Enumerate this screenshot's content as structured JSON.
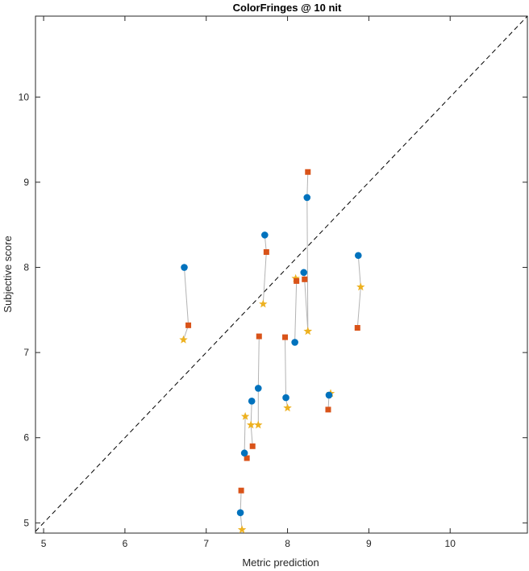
{
  "chart_data": {
    "type": "scatter",
    "title": "ColorFringes @ 10 nit",
    "xlabel": "Metric prediction",
    "ylabel": "Subjective score",
    "xlim": [
      4.9,
      10.95
    ],
    "ylim": [
      4.88,
      10.95
    ],
    "xticks": [
      "5",
      "6",
      "7",
      "8",
      "9",
      "10"
    ],
    "yticks": [
      "5",
      "6",
      "7",
      "8",
      "9",
      "10"
    ],
    "grid": false,
    "diagonal_reference": true,
    "colors": {
      "circle": "#0072BD",
      "square": "#D95319",
      "star": "#EDB120",
      "connector": "#B3B3B3",
      "diagonal": "#000000"
    },
    "groups": [
      {
        "circle": [
          6.73,
          8.0
        ],
        "square": [
          6.78,
          7.32
        ],
        "star": [
          6.72,
          7.15
        ]
      },
      {
        "circle": [
          7.72,
          8.38
        ],
        "square": [
          7.74,
          8.18
        ],
        "star": [
          7.7,
          7.57
        ]
      },
      {
        "circle": [
          7.64,
          6.58
        ],
        "square": [
          7.65,
          7.19
        ],
        "star": [
          7.64,
          6.15
        ]
      },
      {
        "circle": [
          7.56,
          6.43
        ],
        "square": [
          7.57,
          5.9
        ],
        "star": [
          7.55,
          6.15
        ]
      },
      {
        "circle": [
          7.47,
          5.82
        ],
        "square": [
          7.5,
          5.76
        ],
        "star": [
          7.48,
          6.25
        ]
      },
      {
        "circle": [
          7.42,
          5.12
        ],
        "square": [
          7.43,
          5.38
        ],
        "star": [
          7.44,
          4.92
        ]
      },
      {
        "circle": [
          7.98,
          6.47
        ],
        "square": [
          7.97,
          7.18
        ],
        "star": [
          8.0,
          6.35
        ]
      },
      {
        "circle": [
          8.09,
          7.12
        ],
        "square": [
          8.11,
          7.84
        ],
        "star": [
          8.1,
          7.87
        ]
      },
      {
        "circle": [
          8.2,
          7.94
        ],
        "square": [
          8.21,
          7.86
        ],
        "star": [
          8.25,
          7.25
        ]
      },
      {
        "circle": [
          8.24,
          8.82
        ],
        "square": [
          8.25,
          9.12
        ],
        "star": [
          8.25,
          7.25
        ]
      },
      {
        "circle": [
          8.51,
          6.5
        ],
        "square": [
          8.5,
          6.33
        ],
        "star": [
          8.53,
          6.52
        ]
      },
      {
        "circle": [
          8.87,
          8.14
        ],
        "square": [
          8.86,
          7.29
        ],
        "star": [
          8.9,
          7.77
        ]
      }
    ]
  }
}
